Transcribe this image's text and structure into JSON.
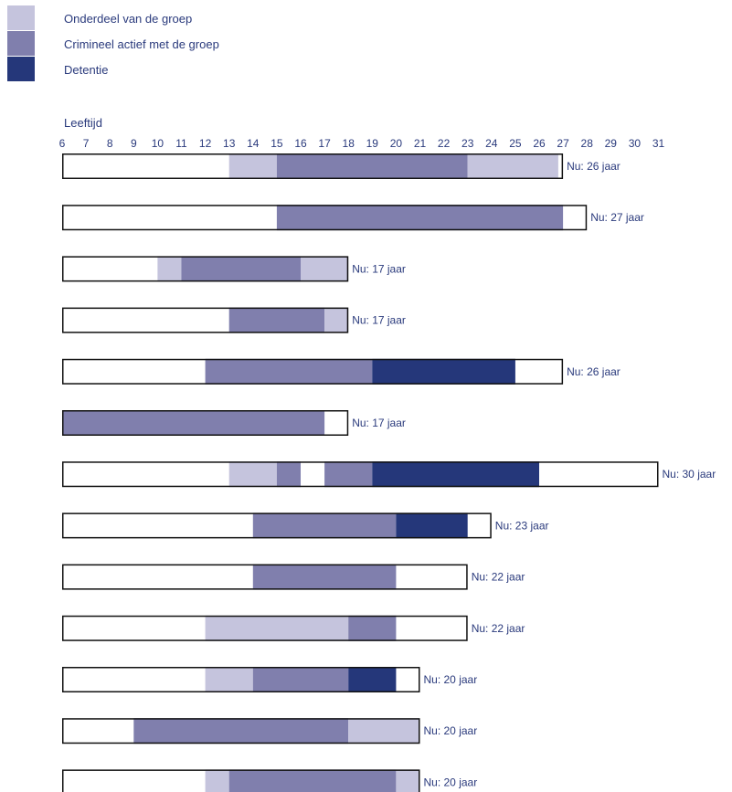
{
  "legend": [
    {
      "label": "Onderdeel van de groep",
      "color": "#c5c4dd"
    },
    {
      "label": "Crimineel actief met de groep",
      "color": "#807fad"
    },
    {
      "label": "Detentie",
      "color": "#25377a"
    }
  ],
  "chart_data": {
    "type": "bar",
    "orientation": "horizontal-timeline",
    "xlabel": "Leeftijd",
    "x_ticks": [
      6,
      7,
      8,
      9,
      10,
      11,
      12,
      13,
      14,
      15,
      16,
      17,
      18,
      19,
      20,
      21,
      22,
      23,
      24,
      25,
      26,
      27,
      28,
      29,
      30,
      31
    ],
    "xlim": [
      6,
      31
    ],
    "colors": {
      "Onderdeel": "#c5c4dd",
      "Crimineel": "#807fad",
      "Detentie": "#25377a"
    },
    "rows": [
      {
        "now_label": "Nu: 26 jaar",
        "end": 27,
        "segments": [
          {
            "status": "Onderdeel",
            "from": 13,
            "to": 15
          },
          {
            "status": "Crimineel",
            "from": 15,
            "to": 23
          },
          {
            "status": "Onderdeel",
            "from": 23,
            "to": 26.8
          }
        ]
      },
      {
        "now_label": "Nu: 27 jaar",
        "end": 28,
        "segments": [
          {
            "status": "Crimineel",
            "from": 15,
            "to": 27
          }
        ]
      },
      {
        "now_label": "Nu: 17 jaar",
        "end": 18,
        "segments": [
          {
            "status": "Onderdeel",
            "from": 10,
            "to": 11
          },
          {
            "status": "Crimineel",
            "from": 11,
            "to": 16
          },
          {
            "status": "Onderdeel",
            "from": 16,
            "to": 18
          }
        ]
      },
      {
        "now_label": "Nu: 17 jaar",
        "end": 18,
        "segments": [
          {
            "status": "Crimineel",
            "from": 13,
            "to": 17
          },
          {
            "status": "Onderdeel",
            "from": 17,
            "to": 18
          }
        ]
      },
      {
        "now_label": "Nu: 26 jaar",
        "end": 27,
        "segments": [
          {
            "status": "Crimineel",
            "from": 12,
            "to": 19
          },
          {
            "status": "Detentie",
            "from": 19,
            "to": 25
          },
          {
            "status": "Detentie",
            "from": 25,
            "to": 25
          }
        ]
      },
      {
        "now_label": "Nu: 17 jaar",
        "end": 18,
        "segments": [
          {
            "status": "Crimineel",
            "from": 6,
            "to": 17
          }
        ]
      },
      {
        "now_label": "Nu: 30 jaar",
        "end": 31,
        "segments": [
          {
            "status": "Onderdeel",
            "from": 13,
            "to": 15
          },
          {
            "status": "Crimineel",
            "from": 15,
            "to": 16
          },
          {
            "status": "Crimineel",
            "from": 17,
            "to": 19
          },
          {
            "status": "Detentie",
            "from": 19,
            "to": 26
          }
        ]
      },
      {
        "now_label": "Nu: 23 jaar",
        "end": 24,
        "segments": [
          {
            "status": "Crimineel",
            "from": 14,
            "to": 20
          },
          {
            "status": "Detentie",
            "from": 20,
            "to": 23
          }
        ]
      },
      {
        "now_label": "Nu: 22 jaar",
        "end": 23,
        "segments": [
          {
            "status": "Crimineel",
            "from": 14,
            "to": 20
          }
        ]
      },
      {
        "now_label": "Nu: 22 jaar",
        "end": 23,
        "segments": [
          {
            "status": "Onderdeel",
            "from": 12,
            "to": 18
          },
          {
            "status": "Crimineel",
            "from": 18,
            "to": 20
          }
        ]
      },
      {
        "now_label": "Nu: 20 jaar",
        "end": 21,
        "segments": [
          {
            "status": "Onderdeel",
            "from": 12,
            "to": 14
          },
          {
            "status": "Crimineel",
            "from": 14,
            "to": 18
          },
          {
            "status": "Detentie",
            "from": 18,
            "to": 20
          }
        ]
      },
      {
        "now_label": "Nu: 20 jaar",
        "end": 21,
        "segments": [
          {
            "status": "Crimineel",
            "from": 9,
            "to": 18
          },
          {
            "status": "Onderdeel",
            "from": 18,
            "to": 21
          }
        ]
      },
      {
        "now_label": "Nu: 20 jaar",
        "end": 21,
        "segments": [
          {
            "status": "Onderdeel",
            "from": 12,
            "to": 13
          },
          {
            "status": "Crimineel",
            "from": 13,
            "to": 20
          },
          {
            "status": "Onderdeel",
            "from": 20,
            "to": 21
          }
        ]
      }
    ]
  }
}
